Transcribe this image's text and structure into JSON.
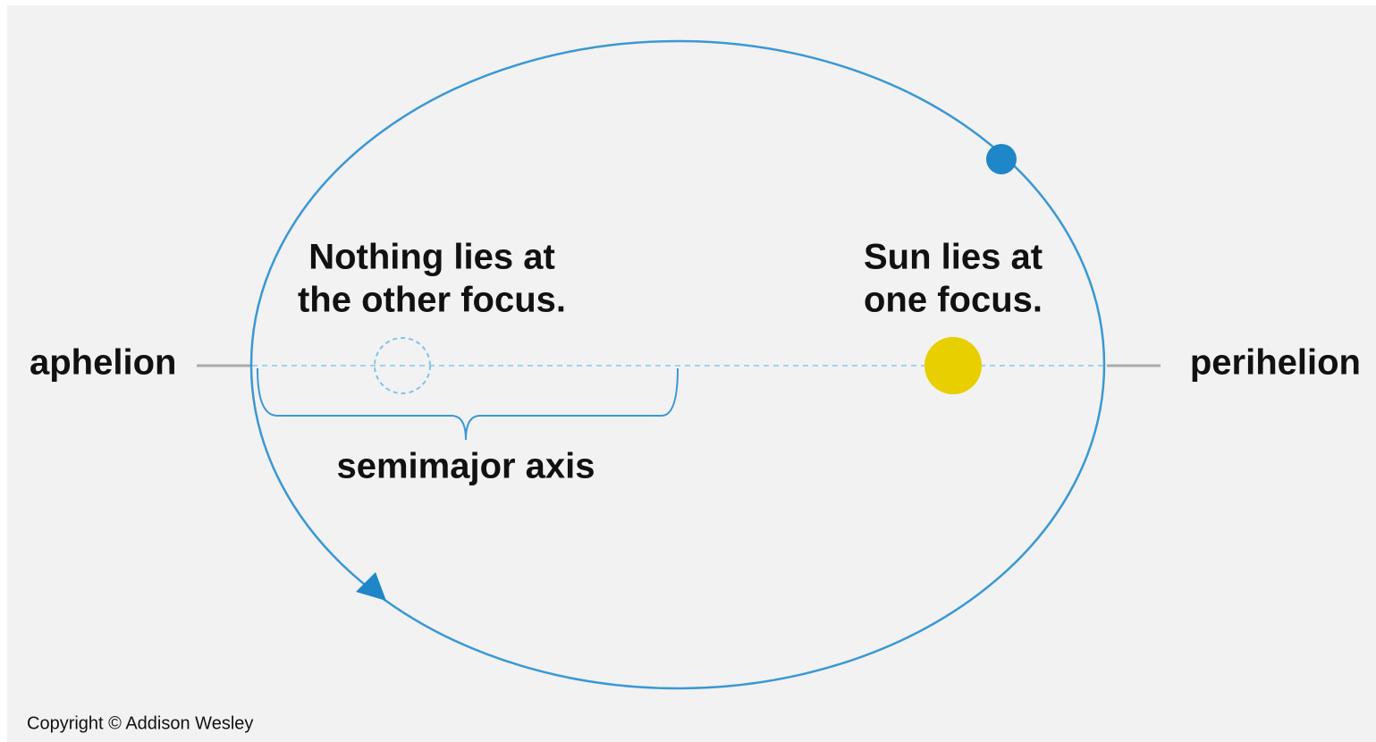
{
  "labels": {
    "aphelion": "aphelion",
    "perihelion": "perihelion",
    "other_focus": [
      "Nothing lies at",
      "the other focus."
    ],
    "sun_focus": [
      "Sun lies at",
      "one focus."
    ],
    "semimajor_axis": "semimajor axis",
    "copyright": "Copyright © Addison Wesley"
  }
}
